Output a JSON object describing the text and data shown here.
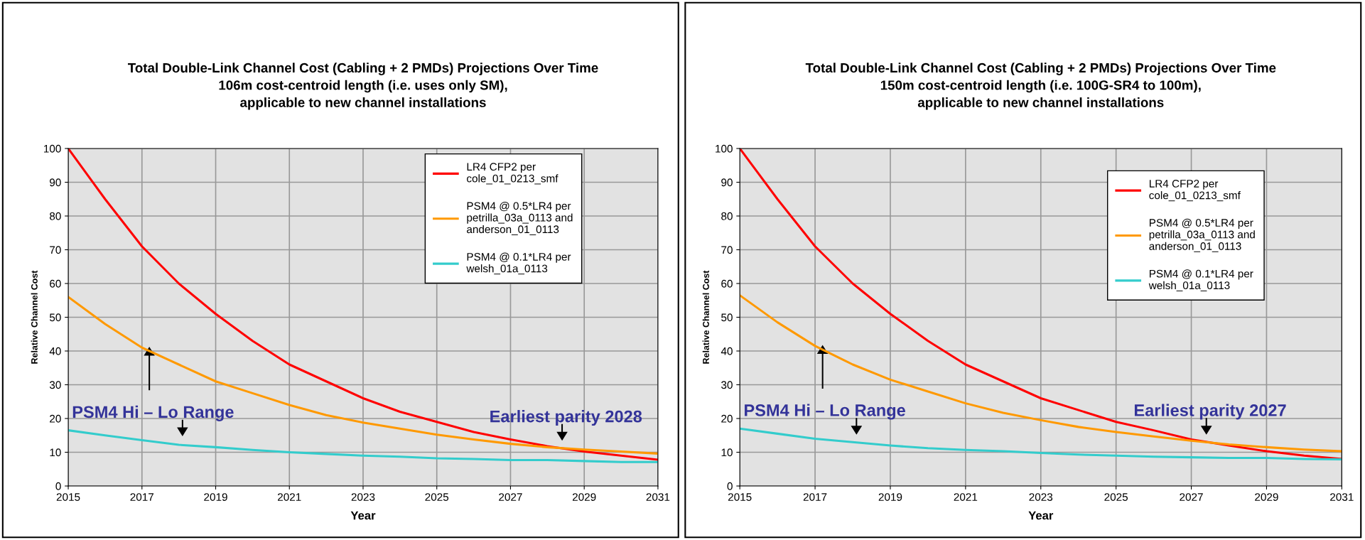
{
  "chart_data": [
    {
      "type": "line",
      "title": "Total Double-Link Channel Cost (Cabling + 2 PMDs) Projections Over Time\n106m cost-centroid length (i.e. uses only SM),\napplicable to new channel installations",
      "xlabel": "Year",
      "ylabel": "Relative Channel Cost",
      "x": [
        2015,
        2016,
        2017,
        2018,
        2019,
        2020,
        2021,
        2022,
        2023,
        2024,
        2025,
        2026,
        2027,
        2028,
        2029,
        2030,
        2031
      ],
      "series": [
        {
          "name": "LR4 CFP2 per\ncole_01_0213_smf",
          "color": "#ff0000",
          "values": [
            100,
            85,
            71,
            60,
            51,
            43,
            36,
            31,
            26,
            22,
            19,
            16,
            13.8,
            11.8,
            10.2,
            9,
            7.8
          ]
        },
        {
          "name": "PSM4 @ 0.5*LR4 per\npetrilla_03a_0113 and\nanderson_01_0113",
          "color": "#ff9900",
          "values": [
            56,
            48,
            41,
            36,
            31,
            27.5,
            24,
            21,
            18.8,
            17,
            15.2,
            13.8,
            12.5,
            11.5,
            10.8,
            10.2,
            9.6
          ]
        },
        {
          "name": "PSM4 @ 0.1*LR4 per\nwelsh_01a_0113",
          "color": "#33cccc",
          "values": [
            16.5,
            15,
            13.6,
            12.2,
            11.5,
            10.7,
            10,
            9.5,
            9,
            8.7,
            8.2,
            8,
            7.7,
            7.7,
            7.4,
            7.1,
            7.1
          ]
        }
      ],
      "xlim": [
        2015,
        2031
      ],
      "xticks": [
        2015,
        2017,
        2019,
        2021,
        2023,
        2025,
        2027,
        2029,
        2031
      ],
      "ylim": [
        0,
        100
      ],
      "yticks": [
        0,
        10,
        20,
        30,
        40,
        50,
        60,
        70,
        80,
        90,
        100
      ],
      "grid": true,
      "legend": "top right",
      "marker": "none",
      "line_style": "solid",
      "annotations": [
        {
          "text": "PSM4 Hi – Lo Range",
          "x": 2018.1,
          "y": 12.5
        },
        {
          "text": "Earliest parity 2028",
          "x": 2028.4,
          "y": 11.2
        }
      ]
    },
    {
      "type": "line",
      "title": "Total Double-Link Channel Cost (Cabling + 2 PMDs) Projections Over Time\n150m cost-centroid length (i.e. 100G-SR4 to 100m),\napplicable to new channel installations",
      "xlabel": "Year",
      "ylabel": "Relative Channel Cost",
      "x": [
        2015,
        2016,
        2017,
        2018,
        2019,
        2020,
        2021,
        2022,
        2023,
        2024,
        2025,
        2026,
        2027,
        2028,
        2029,
        2030,
        2031
      ],
      "series": [
        {
          "name": "LR4 CFP2 per\ncole_01_0213_smf",
          "color": "#ff0000",
          "values": [
            100,
            85,
            71,
            60,
            51,
            43,
            36,
            31,
            26,
            22.5,
            19,
            16.5,
            13.8,
            12,
            10.3,
            9,
            8
          ]
        },
        {
          "name": "PSM4 @ 0.5*LR4 per\npetrilla_03a_0113 and\nanderson_01_0113",
          "color": "#ff9900",
          "values": [
            56.5,
            48.5,
            41.5,
            36,
            31.5,
            28,
            24.5,
            21.7,
            19.5,
            17.5,
            16,
            14.7,
            13.4,
            12.3,
            11.5,
            10.8,
            10.3
          ]
        },
        {
          "name": "PSM4 @ 0.1*LR4 per\nwelsh_01a_0113",
          "color": "#33cccc",
          "values": [
            17,
            15.5,
            14,
            13,
            12,
            11.2,
            10.7,
            10.3,
            9.8,
            9.3,
            9,
            8.7,
            8.5,
            8.3,
            8.3,
            8,
            7.9
          ]
        }
      ],
      "xlim": [
        2015,
        2031
      ],
      "xticks": [
        2015,
        2017,
        2019,
        2021,
        2023,
        2025,
        2027,
        2029,
        2031
      ],
      "ylim": [
        0,
        100
      ],
      "yticks": [
        0,
        10,
        20,
        30,
        40,
        50,
        60,
        70,
        80,
        90,
        100
      ],
      "grid": true,
      "legend": "top right",
      "marker": "none",
      "line_style": "solid",
      "annotations": [
        {
          "text": "PSM4 Hi – Lo Range",
          "x": 2018.1,
          "y": 13
        },
        {
          "text": "Earliest parity 2027",
          "x": 2027.4,
          "y": 13
        }
      ]
    }
  ]
}
